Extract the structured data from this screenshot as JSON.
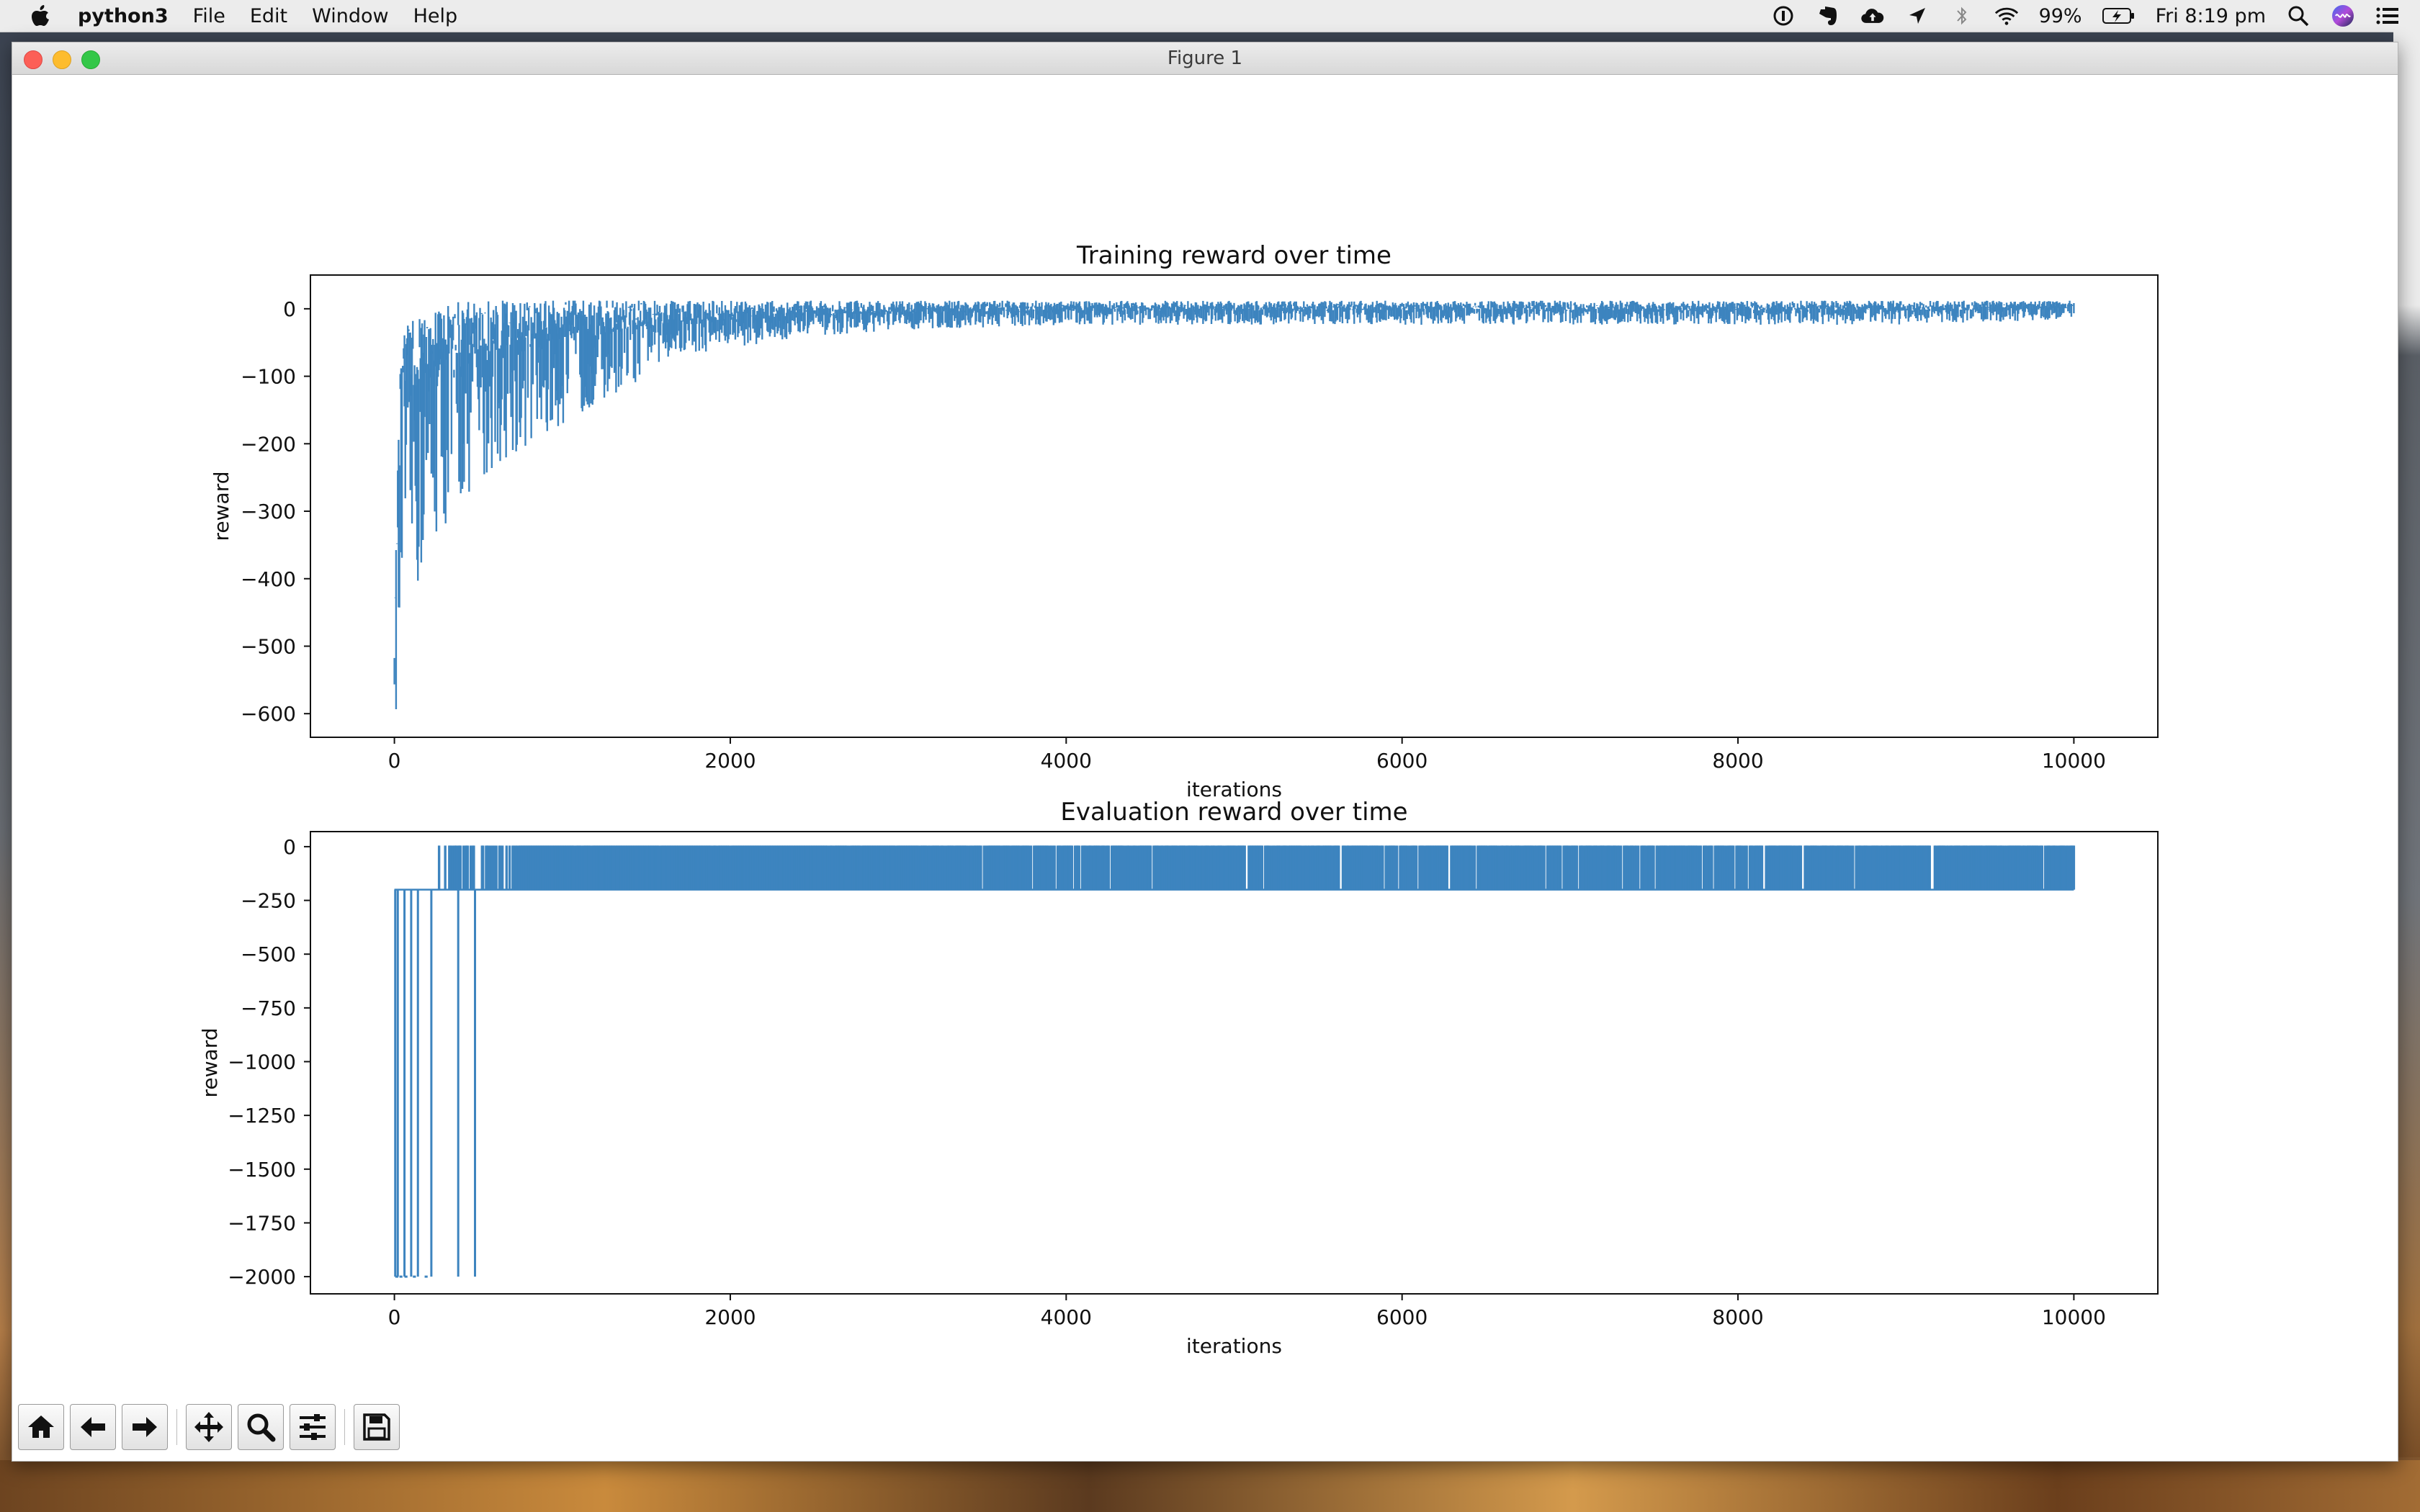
{
  "menubar": {
    "app_name": "python3",
    "items": [
      "File",
      "Edit",
      "Window",
      "Help"
    ],
    "battery": "99%",
    "clock": "Fri 8:19 pm",
    "status_icons": [
      "onepassword-icon",
      "evernote-icon",
      "cloud-upload-icon",
      "location-icon",
      "bluetooth-icon",
      "wifi-icon",
      "battery-icon"
    ],
    "trailing_icons": [
      "spotlight-search-icon",
      "siri-icon",
      "notification-center-icon"
    ]
  },
  "window": {
    "title": "Figure 1"
  },
  "toolbar": {
    "buttons": [
      "home-icon",
      "back-arrow-icon",
      "forward-arrow-icon",
      "pan-icon",
      "zoom-icon",
      "configure-subplots-icon",
      "save-icon"
    ]
  },
  "chart_data": [
    {
      "type": "line",
      "title": "Training reward over time",
      "xlabel": "iterations",
      "ylabel": "reward",
      "xlim": [
        -500,
        10500
      ],
      "ylim": [
        -635,
        50
      ],
      "xticks": [
        0,
        2000,
        4000,
        6000,
        8000,
        10000
      ],
      "yticks": [
        0,
        -100,
        -200,
        -300,
        -400,
        -500,
        -600
      ],
      "xtick_labels": [
        "0",
        "2000",
        "4000",
        "6000",
        "8000",
        "10000"
      ],
      "ytick_labels": [
        "0",
        "−100",
        "−200",
        "−300",
        "−400",
        "−500",
        "−600"
      ],
      "grid": false,
      "color": "#3d84bf",
      "series": [
        {
          "description": "noisy reward, envelope sampled from plot",
          "x": [
            0,
            15,
            30,
            60,
            100,
            150,
            200,
            250,
            300,
            350,
            400,
            500,
            600,
            800,
            1000,
            1200,
            1500,
            1800,
            2000,
            2500,
            3000,
            4000,
            5000,
            6000,
            7000,
            8000,
            9000,
            10000
          ],
          "upper": [
            -500,
            -280,
            -110,
            -30,
            -20,
            -10,
            -5,
            0,
            5,
            10,
            10,
            10,
            12,
            12,
            12,
            12,
            12,
            12,
            12,
            12,
            12,
            12,
            12,
            12,
            12,
            12,
            12,
            12
          ],
          "lower": [
            -560,
            -610,
            -550,
            -380,
            -400,
            -410,
            -350,
            -330,
            -320,
            -300,
            -280,
            -260,
            -230,
            -200,
            -170,
            -140,
            -100,
            -80,
            -70,
            -50,
            -40,
            -30,
            -30,
            -30,
            -30,
            -30,
            -30,
            -20
          ]
        }
      ]
    },
    {
      "type": "line",
      "title": "Evaluation reward over time",
      "xlabel": "iterations",
      "ylabel": "reward",
      "xlim": [
        -500,
        10500
      ],
      "ylim": [
        -2080,
        70
      ],
      "xticks": [
        0,
        2000,
        4000,
        6000,
        8000,
        10000
      ],
      "yticks": [
        0,
        -250,
        -500,
        -750,
        -1000,
        -1250,
        -1500,
        -1750,
        -2000
      ],
      "xtick_labels": [
        "0",
        "2000",
        "4000",
        "6000",
        "8000",
        "10000"
      ],
      "ytick_labels": [
        "0",
        "−250",
        "−500",
        "−750",
        "−1000",
        "−1250",
        "−1500",
        "−1750",
        "−2000"
      ],
      "grid": false,
      "color": "#3d84bf",
      "series": [
        {
          "description": "episodes alternating between about 0 and about -200, with early drops to -2000",
          "high_value": 5,
          "low_value": -200,
          "early_drop_x": [
            5,
            20,
            60,
            100,
            140,
            220,
            380,
            480
          ],
          "early_drop_value": -2000,
          "first_high_x": 260,
          "last_x": 10000
        }
      ]
    }
  ]
}
